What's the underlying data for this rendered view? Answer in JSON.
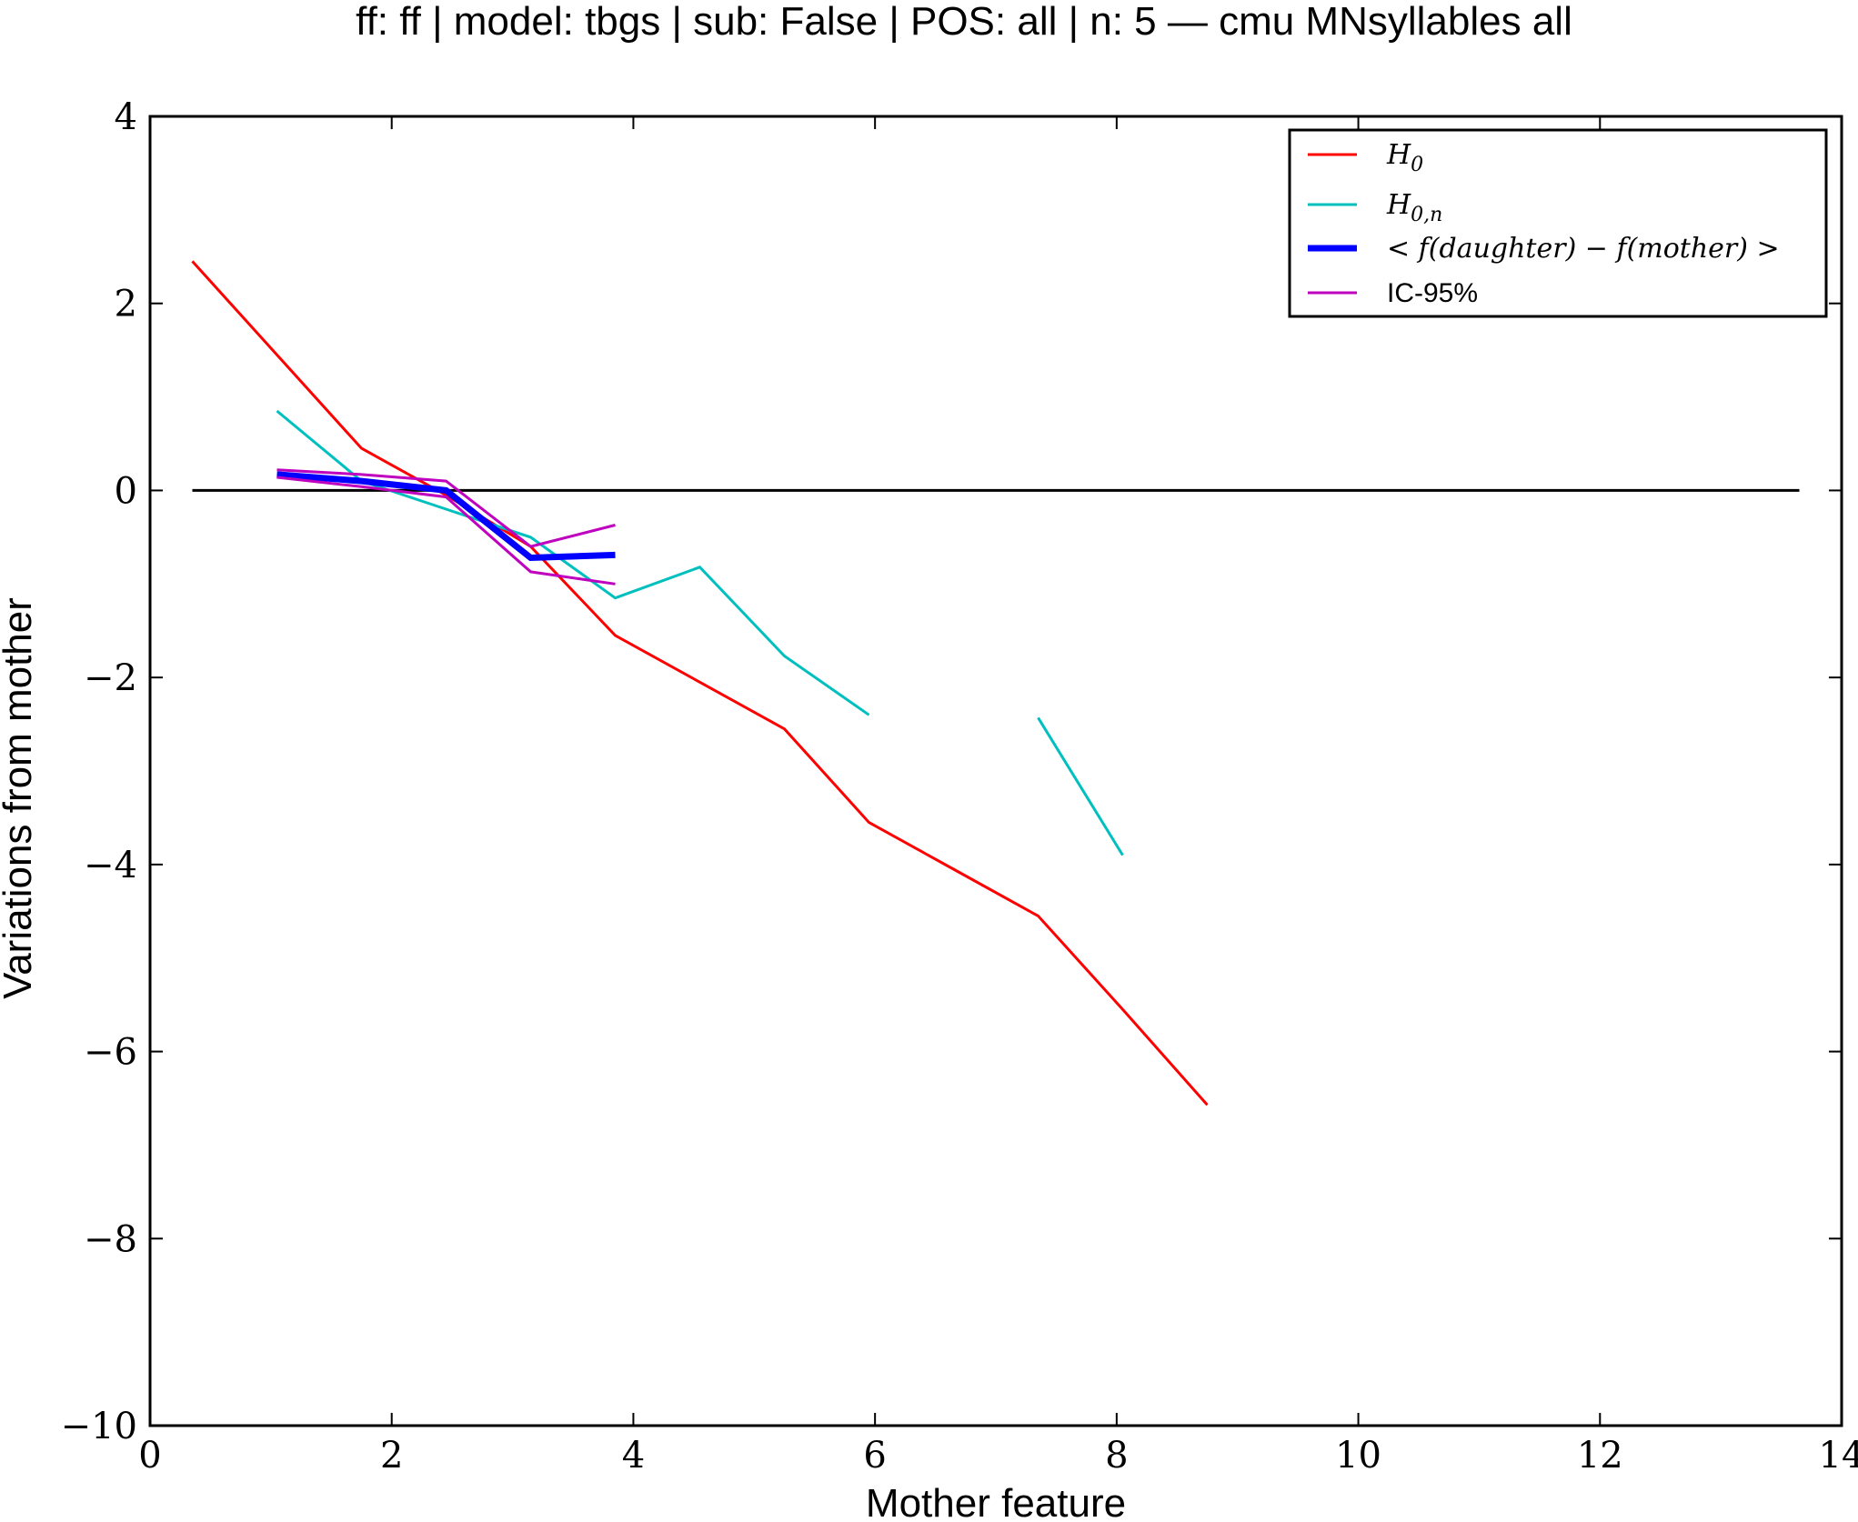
{
  "chart_data": {
    "type": "line",
    "title": "ff: ff | model: tbgs | sub: False | POS: all | n: 5 — cmu MNsyllables all",
    "xlabel": "Mother feature",
    "ylabel": "Variations from mother",
    "xlim": [
      0,
      14
    ],
    "ylim": [
      -10,
      4
    ],
    "xticks": [
      0,
      2,
      4,
      6,
      8,
      10,
      12,
      14
    ],
    "yticks": [
      4,
      2,
      0,
      -2,
      -4,
      -6,
      -8,
      -10
    ],
    "xtick_labels": [
      "0",
      "2",
      "4",
      "6",
      "8",
      "10",
      "12",
      "14"
    ],
    "ytick_labels": [
      "4",
      "2",
      "0",
      "−2",
      "−4",
      "−6",
      "−8",
      "−10"
    ],
    "grid": false,
    "legend_position": "top-right",
    "series": [
      {
        "name": "H_0",
        "label_main": "H",
        "label_sub": "0",
        "color": "#ff0000",
        "style": "thin",
        "segments": [
          [
            [
              0.35,
              2.45
            ],
            [
              1.75,
              0.45
            ],
            [
              2.45,
              -0.05
            ],
            [
              3.15,
              -0.6
            ],
            [
              3.85,
              -1.55
            ],
            [
              4.55,
              -2.05
            ],
            [
              5.25,
              -2.55
            ],
            [
              5.95,
              -3.55
            ],
            [
              6.65,
              -4.05
            ],
            [
              7.35,
              -4.55
            ],
            [
              8.05,
              -5.55
            ],
            [
              8.75,
              -6.57
            ]
          ]
        ]
      },
      {
        "name": "H_0,n",
        "label_main": "H",
        "label_sub": "0,n",
        "color": "#00bfbf",
        "style": "thin",
        "segments": [
          [
            [
              1.05,
              0.85
            ],
            [
              1.75,
              0.1
            ],
            [
              2.45,
              -0.2
            ],
            [
              3.15,
              -0.5
            ],
            [
              3.85,
              -1.15
            ],
            [
              4.55,
              -0.82
            ],
            [
              5.25,
              -1.77
            ],
            [
              5.95,
              -2.4
            ]
          ],
          [
            [
              7.35,
              -2.43
            ],
            [
              8.05,
              -3.9
            ]
          ]
        ]
      },
      {
        "name": "< f(daughter) − f(mother) >",
        "label_main": "< f(daughter) − f(mother) >",
        "color": "#0000ff",
        "style": "thick",
        "segments": [
          [
            [
              1.05,
              0.17
            ],
            [
              1.75,
              0.1
            ],
            [
              2.45,
              0.0
            ],
            [
              3.15,
              -0.72
            ],
            [
              3.85,
              -0.69
            ]
          ]
        ]
      },
      {
        "name": "IC-95%",
        "label_main": "IC-95%",
        "color": "#bf00bf",
        "style": "thin",
        "segments": [
          [
            [
              1.05,
              0.22
            ],
            [
              1.75,
              0.17
            ],
            [
              2.45,
              0.1
            ],
            [
              3.15,
              -0.6
            ],
            [
              3.85,
              -0.37
            ]
          ],
          [
            [
              1.05,
              0.14
            ],
            [
              1.75,
              0.04
            ],
            [
              2.45,
              -0.07
            ],
            [
              3.15,
              -0.87
            ],
            [
              3.85,
              -1.0
            ]
          ]
        ]
      }
    ],
    "reference_lines": [
      {
        "type": "horizontal",
        "y": 0,
        "x_from": 0.35,
        "x_to": 13.65,
        "color": "#000000"
      }
    ]
  }
}
